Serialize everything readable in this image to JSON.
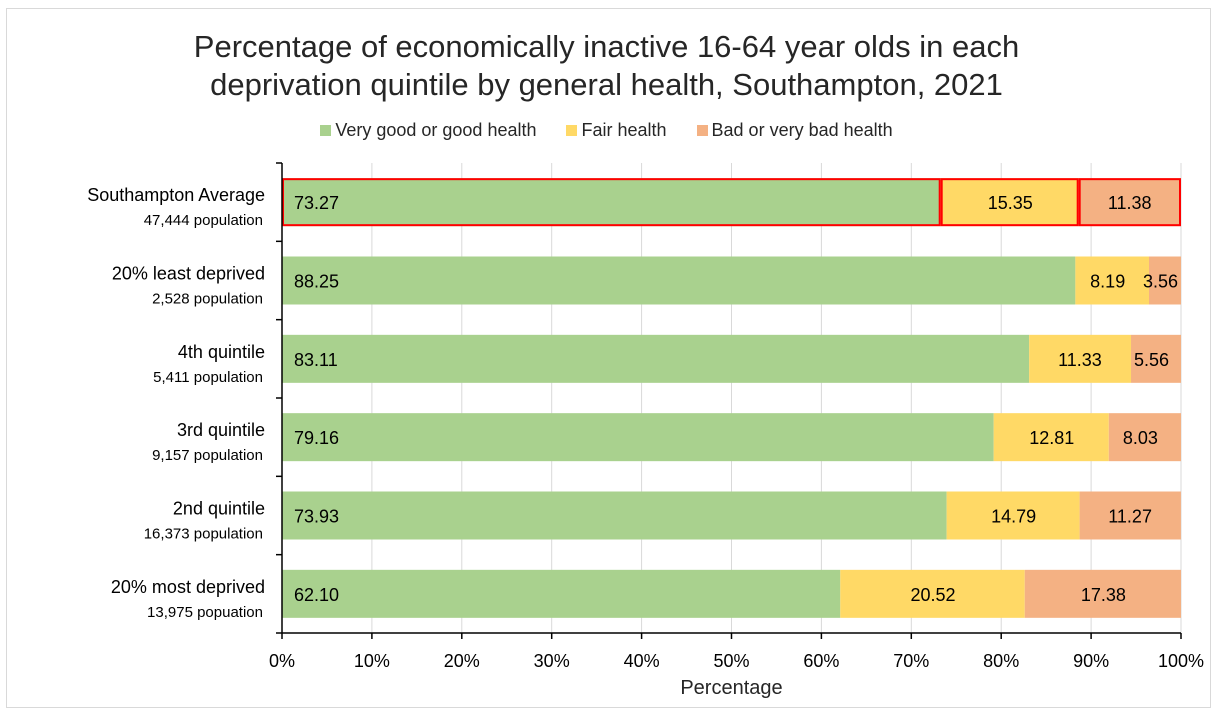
{
  "chart_data": {
    "type": "bar",
    "orientation": "horizontal",
    "stacked": true,
    "title_lines": [
      "Percentage of economically inactive 16-64 year olds in each",
      "deprivation quintile by general health, Southampton, 2021"
    ],
    "xlabel": "Percentage",
    "ylabel": "",
    "xlim": [
      0,
      100
    ],
    "x_ticks": [
      "0%",
      "10%",
      "20%",
      "30%",
      "40%",
      "50%",
      "60%",
      "70%",
      "80%",
      "90%",
      "100%"
    ],
    "legend_position": "top",
    "grid": true,
    "categories": [
      {
        "label": "Southampton Average",
        "sublabel": "47,444 population",
        "highlighted": true
      },
      {
        "label": "20% least deprived",
        "sublabel": "2,528 population"
      },
      {
        "label": "4th quintile",
        "sublabel": "5,411 population"
      },
      {
        "label": "3rd quintile",
        "sublabel": "9,157 population"
      },
      {
        "label": "2nd quintile",
        "sublabel": "16,373 population"
      },
      {
        "label": "20% most deprived",
        "sublabel": "13,975 popuation"
      }
    ],
    "series": [
      {
        "name": "Very good or good health",
        "color": "#a9d18e",
        "values": [
          73.27,
          88.25,
          83.11,
          79.16,
          73.93,
          62.1
        ],
        "labels": [
          "73.27",
          "88.25",
          "83.11",
          "79.16",
          "73.93",
          "62.10"
        ]
      },
      {
        "name": "Fair health",
        "color": "#ffd966",
        "values": [
          15.35,
          8.19,
          11.33,
          12.81,
          14.79,
          20.52
        ],
        "labels": [
          "15.35",
          "8.19",
          "11.33",
          "12.81",
          "14.79",
          "20.52"
        ]
      },
      {
        "name": "Bad or very bad health",
        "color": "#f4b183",
        "values": [
          11.38,
          3.56,
          5.56,
          8.03,
          11.27,
          17.38
        ],
        "labels": [
          "11.38",
          "3.56",
          "5.56",
          "8.03",
          "11.27",
          "17.38"
        ]
      }
    ],
    "highlight_color": "#ff0000",
    "grid_color": "#d9d9d9"
  }
}
